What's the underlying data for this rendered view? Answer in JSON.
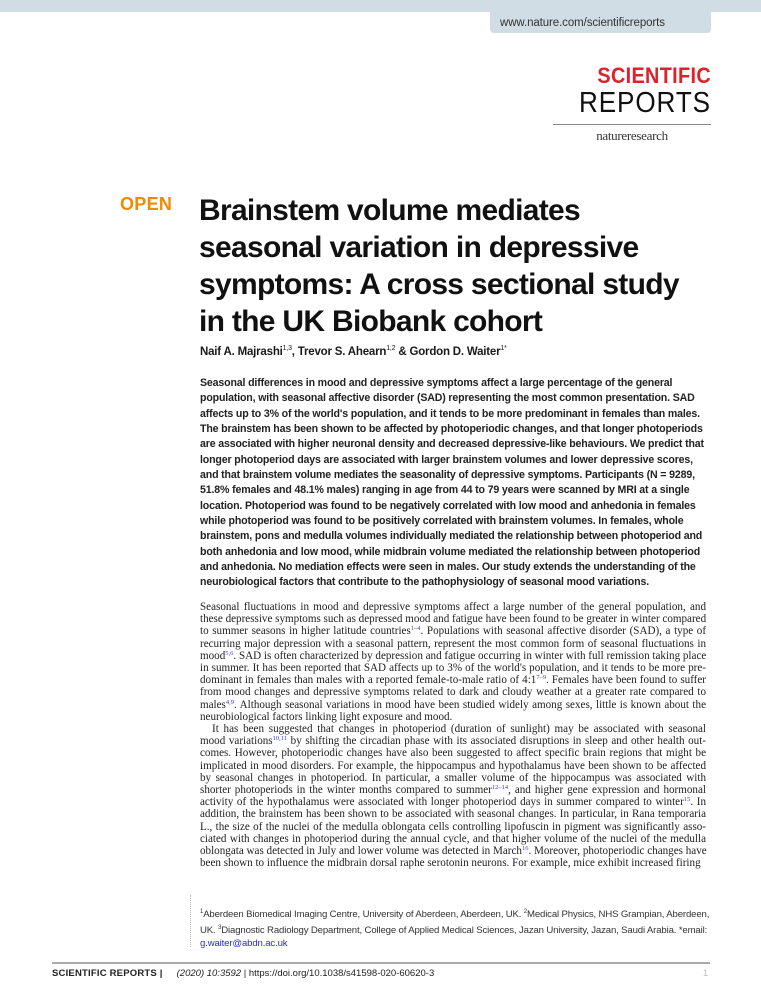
{
  "header": {
    "url": "www.nature.com/scientificreports"
  },
  "logo": {
    "line1": "SCIENTIFIC",
    "line2": "REPORTS",
    "publisher": "natureresearch",
    "colors": {
      "scientific": "#e0202b"
    }
  },
  "open_label": "OPEN",
  "open_color": "#f08a00",
  "title_lines": [
    "Brainstem volume mediates",
    "seasonal variation in depressive",
    "symptoms: A cross sectional study",
    "in the UK Biobank cohort"
  ],
  "authors": [
    {
      "name": "Naif A. Majrashi",
      "aff": "1,3",
      "sep": ", "
    },
    {
      "name": "Trevor S. Ahearn",
      "aff": "1,2",
      "sep": " & "
    },
    {
      "name": "Gordon D. Waiter",
      "aff": "1*",
      "sep": ""
    }
  ],
  "abstract_lines": [
    "Seasonal differences in mood and depressive symptoms affect a large percentage of the general",
    "population, with seasonal affective disorder (SAD) representing the most common presentation. SAD",
    "affects up to 3% of the world's population, and it tends to be more predominant in females than males.",
    "The brainstem has been shown to be affected by photoperiodic changes, and that longer photoperiods",
    "are associated with higher neuronal density and decreased depressive-like behaviours. We predict that",
    "longer photoperiod days are associated with larger brainstem volumes and lower depressive scores,",
    "and that brainstem volume mediates the seasonality of depressive symptoms. Participants (N = 9289,",
    "51.8% females and 48.1% males) ranging in age from 44 to 79 years were scanned by MRI at a single",
    "location. Photoperiod was found to be negatively correlated with low mood and anhedonia in females",
    "while photoperiod was found to be positively correlated with brainstem volumes. In females, whole",
    "brainstem, pons and medulla volumes individually mediated the relationship between photoperiod and",
    "both anhedonia and low mood, while midbrain volume mediated the relationship between photoperiod",
    "and anhedonia. No mediation effects were seen in males. Our study extends the understanding of the",
    "neurobiological factors that contribute to the pathophysiology of seasonal mood variations."
  ],
  "body_paragraphs": [
    [
      [
        "Seasonal fluctuations in mood and depressive symptoms affect a large number of the general population, and"
      ],
      [
        "these depressive symptoms such as depressed mood and fatigue have been found to be greater in winter compared"
      ],
      [
        "to summer seasons in higher latitude countries",
        {
          "ref": "1–4"
        },
        ". Populations with seasonal affective disorder (SAD), a type of"
      ],
      [
        "recurring major depression with a seasonal pattern, represent the most common form of seasonal fluctuations in"
      ],
      [
        "mood",
        {
          "ref": "5,6"
        },
        ". SAD is often characterized by depression and fatigue occurring in winter with full remission taking place"
      ],
      [
        "in summer. It has been reported that SAD affects up to 3% of the world's population, and it tends to be more pre-"
      ],
      [
        "dominant in females than males with a reported female-to-male ratio of 4:1",
        {
          "ref": "7–9"
        },
        ". Females have been found to suffer"
      ],
      [
        "from mood changes and depressive symptoms related to dark and cloudy weather at a greater rate compared to"
      ],
      [
        "males",
        {
          "ref": "4,9"
        },
        ". Although seasonal variations in mood have been studied widely among sexes, little is known about the"
      ],
      [
        "neurobiological factors linking light exposure and mood."
      ]
    ],
    [
      [
        "It has been suggested that changes in photoperiod (duration of sunlight) may be associated with seasonal"
      ],
      [
        "mood variations",
        {
          "ref": "10,11"
        },
        " by shifting the circadian phase with its associated disruptions in sleep and other health out-"
      ],
      [
        "comes. However, photoperiodic changes have also been suggested to affect specific brain regions that might be"
      ],
      [
        "implicated in mood disorders. For example, the hippocampus and hypothalamus have been shown to be affected"
      ],
      [
        "by seasonal changes in photoperiod. In particular, a smaller volume of the hippocampus was associated with"
      ],
      [
        "shorter photoperiods in the winter months compared to summer",
        {
          "ref": "12–14"
        },
        ", and higher gene expression and hormonal"
      ],
      [
        "activity of the hypothalamus were associated with longer photoperiod days in summer compared to winter",
        {
          "ref": "15"
        },
        ". In"
      ],
      [
        "addition, the brainstem has been shown to be associated with seasonal changes. In particular, in Rana temporaria"
      ],
      [
        "L., the size of the nuclei of the medulla oblongata cells controlling lipofuscin in pigment was significantly asso-"
      ],
      [
        "ciated with changes in photoperiod during the annual cycle, and that higher volume of the nuclei of the medulla"
      ],
      [
        "oblongata was detected in July and lower volume was detected in March",
        {
          "ref": "16"
        },
        ". Moreover, photoperiodic changes have"
      ],
      [
        "been shown to influence the midbrain dorsal raphe serotonin neurons. For example, mice exhibit increased firing"
      ]
    ]
  ],
  "footnote": {
    "aff1_num": "1",
    "aff1": "Aberdeen Biomedical Imaging Centre, University of Aberdeen, Aberdeen, UK. ",
    "aff2_num": "2",
    "aff2": "Medical Physics, NHS Grampian, Aberdeen, UK. ",
    "aff3_num": "3",
    "aff3": "Diagnostic Radiology Department, College of Applied Medical Sciences, Jazan University, Jazan, Saudi Arabia. ",
    "email_label": "*email: ",
    "email": "g.waiter@abdn.ac.uk"
  },
  "footer": {
    "journal": "SCIENTIFIC REPORTS |",
    "citation": "(2020) 10:3592",
    "doi": " | https://doi.org/10.1038/s41598-020-60620-3",
    "page": "1"
  }
}
